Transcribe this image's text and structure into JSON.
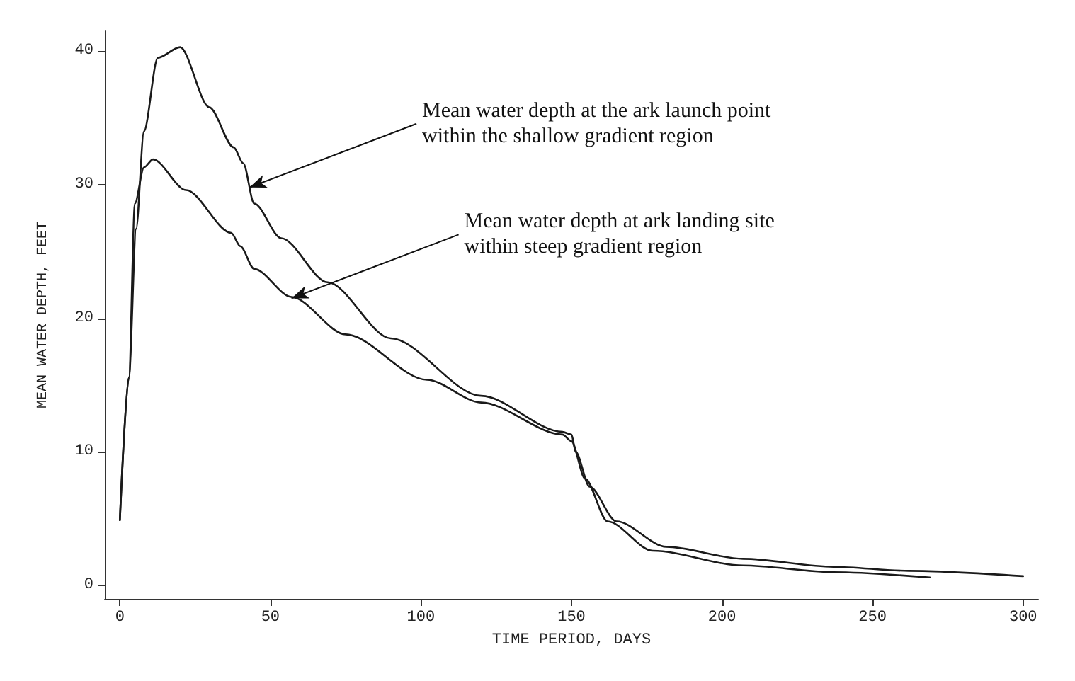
{
  "chart_data": {
    "type": "line",
    "xlabel": "TIME PERIOD, DAYS",
    "ylabel": "MEAN WATER DEPTH, FEET",
    "xlim": [
      -5,
      305
    ],
    "ylim": [
      -1,
      41.5
    ],
    "xticks": [
      0,
      50,
      100,
      150,
      200,
      250,
      300
    ],
    "yticks": [
      0,
      10,
      20,
      30,
      40
    ],
    "grid": false,
    "marker": "none",
    "line_style": "solid",
    "series": [
      {
        "color": "#1a1a1a",
        "x": [
          0,
          3,
          5.4,
          8,
          12.6,
          20,
          29.7,
          37.8,
          41,
          44.6,
          53.6,
          69,
          90,
          120,
          147,
          150,
          151.4,
          156,
          165,
          181.5,
          207,
          237,
          262,
          300
        ],
        "values": [
          4.9,
          15.6,
          26.7,
          34,
          39.5,
          40.3,
          35.8,
          32.8,
          31.6,
          28.6,
          26,
          22.7,
          18.5,
          14.2,
          11.5,
          11.3,
          10,
          7.4,
          4.8,
          2.9,
          2,
          1.4,
          1.1,
          0.7
        ]
      },
      {
        "color": "#1a1a1a",
        "x": [
          0,
          3,
          5,
          8,
          11,
          22,
          37,
          40,
          44.6,
          57,
          75,
          102,
          120,
          147,
          150,
          154.5,
          162,
          177,
          207,
          237,
          269
        ],
        "values": [
          4.9,
          15.6,
          28.6,
          31.3,
          31.9,
          29.6,
          26.4,
          25.4,
          23.7,
          21.6,
          18.8,
          15.4,
          13.7,
          11.3,
          10.8,
          8,
          4.8,
          2.6,
          1.5,
          1,
          0.6
        ]
      }
    ],
    "annotations": [
      {
        "text": "Mean water depth at the ark launch point\nwithin the shallow gradient region",
        "x": 43,
        "y": 29.8
      },
      {
        "text": "Mean water depth at ark landing site\nwithin steep gradient region",
        "x": 57,
        "y": 21.5
      }
    ]
  }
}
